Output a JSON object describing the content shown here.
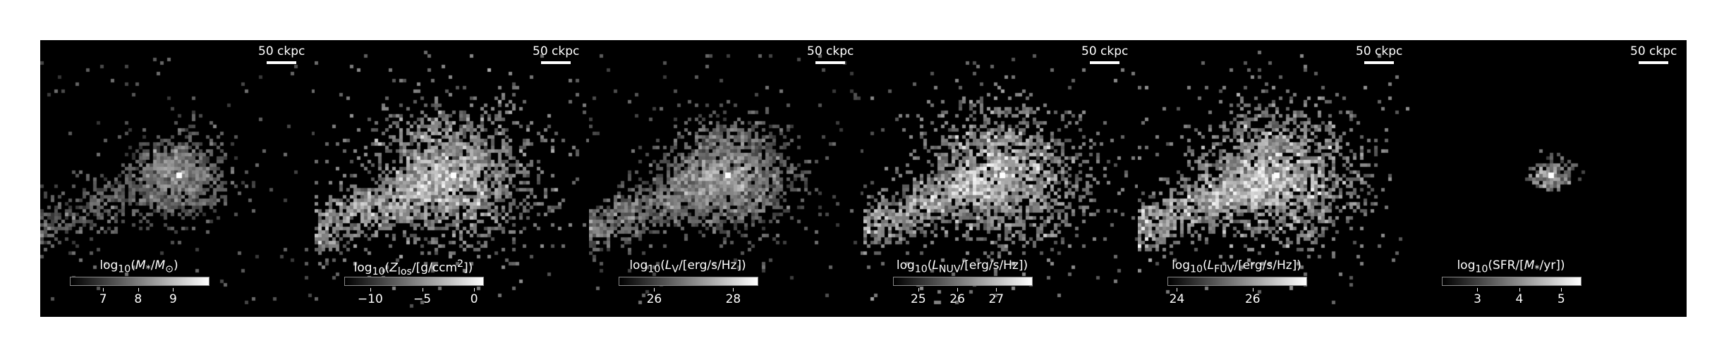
{
  "image": {
    "background": "#ffffff",
    "strip_color": "#000000",
    "colormap": [
      "#000000",
      "#ffffff"
    ]
  },
  "panels": [
    {
      "scale_label": "50 ckpc",
      "cb_label": "log<sub>10</sub>(<i>M</i><sub>*</sub>/<i>M</i><sub>⊙</sub>)",
      "ticks": [
        "7",
        "8",
        "9"
      ],
      "tick_values": [
        7,
        8,
        9
      ],
      "range": [
        6.05,
        10.0
      ],
      "spread": "compact",
      "center_intensity": 1.0,
      "halo_intensity": 0.55
    },
    {
      "scale_label": "50 ckpc",
      "cb_label": "log<sub>10</sub>(<i>Z</i><sub>los</sub>/[g/ccm<sup>2</sup>])",
      "ticks": [
        "−10",
        "−5",
        "0"
      ],
      "tick_values": [
        -10,
        -5,
        0
      ],
      "range": [
        -12.5,
        0.8
      ],
      "spread": "wide",
      "center_intensity": 1.0,
      "halo_intensity": 0.75
    },
    {
      "scale_label": "50 ckpc",
      "cb_label": "log<sub>10</sub>(<i>L</i><sub>V</sub>/[erg/s/Hz])",
      "ticks": [
        "26",
        "28"
      ],
      "tick_values": [
        26,
        28
      ],
      "range": [
        25.1,
        28.6
      ],
      "spread": "medium",
      "center_intensity": 1.0,
      "halo_intensity": 0.6
    },
    {
      "scale_label": "50 ckpc",
      "cb_label": "log<sub>10</sub>(<i>L</i><sub>NUV</sub>/[erg/s/Hz])",
      "ticks": [
        "25",
        "26",
        "27"
      ],
      "tick_values": [
        25,
        26,
        27
      ],
      "range": [
        24.35,
        27.9
      ],
      "spread": "wide",
      "center_intensity": 1.0,
      "halo_intensity": 0.8
    },
    {
      "scale_label": "50 ckpc",
      "cb_label": "log<sub>10</sub>(<i>L</i><sub>FUV</sub>/[erg/s/Hz])",
      "ticks": [
        "24",
        "26"
      ],
      "tick_values": [
        24,
        26
      ],
      "range": [
        23.75,
        27.4
      ],
      "spread": "wide",
      "center_intensity": 1.0,
      "halo_intensity": 0.85
    },
    {
      "scale_label": "50 ckpc",
      "cb_label": "log<sub>10</sub>(SFR/[<i>M</i><sub>*</sub>/yr])",
      "ticks": [
        "3",
        "4",
        "5"
      ],
      "tick_values": [
        3,
        4,
        5
      ],
      "range": [
        2.15,
        5.45
      ],
      "spread": "tiny",
      "center_intensity": 1.0,
      "halo_intensity": 0.5
    }
  ]
}
